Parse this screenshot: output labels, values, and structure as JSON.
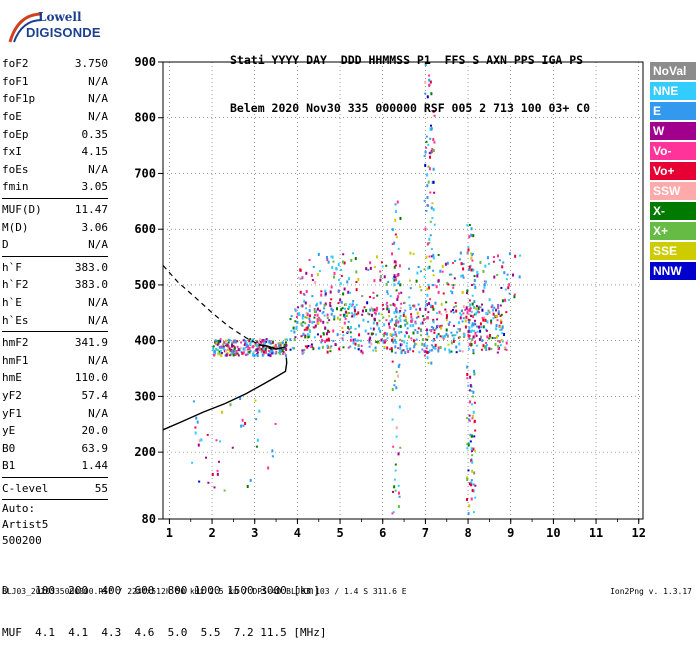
{
  "logo": {
    "line1": "Lowell",
    "line2": "DIGISONDE"
  },
  "header": {
    "line1": "Stati YYYY DAY  DDD HHMMSS P1  FFS S AXN PPS IGA PS",
    "line2": "Belem 2020 Nov30 335 000000 RSF 005 2 713 100 03+ C0"
  },
  "params": [
    {
      "label": "foF2",
      "value": "3.750"
    },
    {
      "label": "foF1",
      "value": "N/A"
    },
    {
      "label": "foF1p",
      "value": "N/A"
    },
    {
      "label": "foE",
      "value": "N/A"
    },
    {
      "label": "foEp",
      "value": "0.35"
    },
    {
      "label": "fxI",
      "value": "4.15"
    },
    {
      "label": "foEs",
      "value": "N/A"
    },
    {
      "label": "fmin",
      "value": "3.05"
    },
    {
      "label": "MUF(D)",
      "value": "11.47",
      "sep": true
    },
    {
      "label": "M(D)",
      "value": "3.06"
    },
    {
      "label": "D",
      "value": "N/A"
    },
    {
      "label": "h`F",
      "value": "383.0",
      "sep": true
    },
    {
      "label": "h`F2",
      "value": "383.0"
    },
    {
      "label": "h`E",
      "value": "N/A"
    },
    {
      "label": "h`Es",
      "value": "N/A"
    },
    {
      "label": "hmF2",
      "value": "341.9",
      "sep": true
    },
    {
      "label": "hmF1",
      "value": "N/A"
    },
    {
      "label": "hmE",
      "value": "110.0"
    },
    {
      "label": "yF2",
      "value": "57.4"
    },
    {
      "label": "yF1",
      "value": "N/A"
    },
    {
      "label": "yE",
      "value": "20.0"
    },
    {
      "label": "B0",
      "value": "63.9"
    },
    {
      "label": "B1",
      "value": "1.44"
    },
    {
      "label": "C-level",
      "value": "55",
      "sep": true
    }
  ],
  "autoscaling": {
    "line1": "Auto:",
    "line2": "Artist5",
    "line3": "500200"
  },
  "bottom": {
    "d_line": "D    100  200  400  600  800 1000 1500 3000 [km]",
    "muf_line": "MUF  4.1  4.1  4.3  4.6  5.0  5.5  7.2 11.5 [MHz]"
  },
  "footer": "BLJ03_2020335000000.RSF / 224fx512h 50 kHz 2.5 km / DPS-4D BLJ03 103 / 1.4 S 311.6 E",
  "version": "Ion2Png v. 1.3.17",
  "legend": [
    {
      "label": "NoVal",
      "color": "#8c8c8c"
    },
    {
      "label": "NNE",
      "color": "#33ccff"
    },
    {
      "label": "E",
      "color": "#3399ee"
    },
    {
      "label": "W",
      "color": "#a0008c"
    },
    {
      "label": "Vo-",
      "color": "#ff3399"
    },
    {
      "label": "Vo+",
      "color": "#e60033"
    },
    {
      "label": "SSW",
      "color": "#ffaaaa"
    },
    {
      "label": "X-",
      "color": "#007a00"
    },
    {
      "label": "X+",
      "color": "#66bb44"
    },
    {
      "label": "SSE",
      "color": "#cccc00"
    },
    {
      "label": "NNW",
      "color": "#0000cc"
    }
  ],
  "chart_data": {
    "type": "scatter",
    "xlabel": "",
    "ylabel": "",
    "xlim": [
      0.85,
      12.1
    ],
    "ylim": [
      80,
      900
    ],
    "x_ticks": [
      1,
      2,
      3,
      4,
      5,
      6,
      7,
      8,
      9,
      10,
      11,
      12
    ],
    "y_ticks": [
      80,
      200,
      300,
      400,
      500,
      600,
      700,
      800,
      900
    ],
    "grid": true,
    "grid_style": "dotted",
    "legend_position": "right",
    "clusters": [
      {
        "name": "O-trace F2",
        "x_range": [
          2.0,
          3.75
        ],
        "y_range": [
          375,
          405
        ]
      },
      {
        "name": "F-spread",
        "x_range": [
          3.8,
          8.9
        ],
        "y_range": [
          380,
          470
        ]
      },
      {
        "name": "spread-upper",
        "x_range": [
          4.0,
          9.2
        ],
        "y_range": [
          470,
          560
        ]
      },
      {
        "name": "Es / spread at 6.3",
        "x_range": [
          6.2,
          6.4
        ],
        "y_range": [
          90,
          680
        ]
      },
      {
        "name": "Spread at 7",
        "x_range": [
          6.95,
          7.2
        ],
        "y_range": [
          360,
          900
        ]
      },
      {
        "name": "Spread at 8",
        "x_range": [
          7.95,
          8.15
        ],
        "y_range": [
          80,
          610
        ]
      },
      {
        "name": "Low echoes",
        "x_range": [
          1.5,
          3.5
        ],
        "y_range": [
          130,
          300
        ]
      }
    ],
    "ionogram_trace_solid": [
      [
        0.85,
        240
      ],
      [
        1.3,
        255
      ],
      [
        1.8,
        272
      ],
      [
        2.3,
        287
      ],
      [
        2.8,
        305
      ],
      [
        3.2,
        322
      ],
      [
        3.5,
        335
      ],
      [
        3.72,
        345
      ],
      [
        3.75,
        360
      ],
      [
        3.74,
        370
      ]
    ],
    "ionogram_trace_dashed": [
      [
        0.85,
        535
      ],
      [
        1.2,
        505
      ],
      [
        1.6,
        478
      ],
      [
        2.0,
        450
      ],
      [
        2.4,
        425
      ],
      [
        2.8,
        405
      ],
      [
        3.1,
        393
      ],
      [
        3.4,
        385
      ]
    ],
    "profile_line": [
      [
        3.1,
        393
      ],
      [
        3.3,
        390
      ],
      [
        3.5,
        385
      ],
      [
        3.7,
        388
      ]
    ]
  }
}
